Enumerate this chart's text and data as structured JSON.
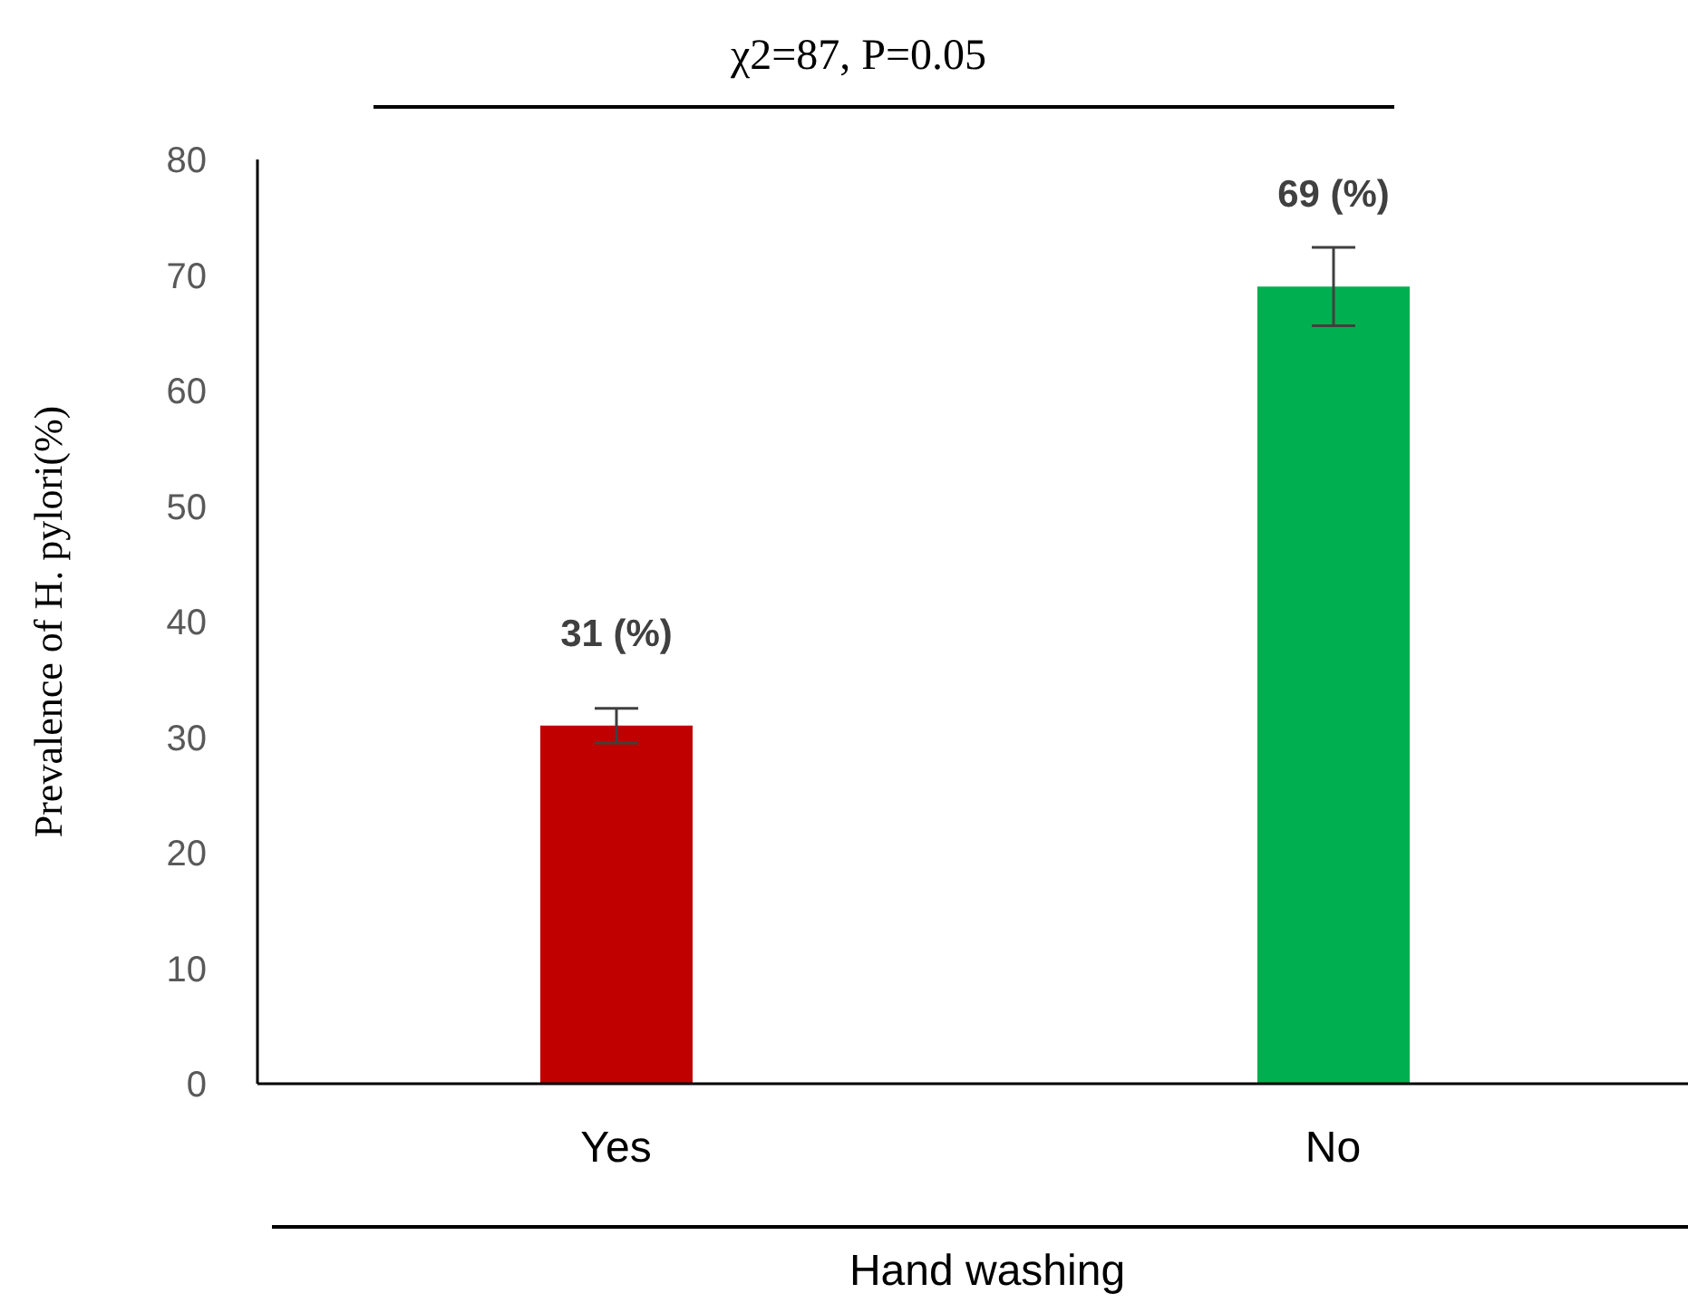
{
  "chart_data": {
    "type": "bar",
    "title": "χ2=87, P=0.05",
    "xlabel": "Hand washing",
    "ylabel": "Prevalence of H. pylori(%)",
    "categories": [
      "Yes",
      "No"
    ],
    "values": [
      31,
      69
    ],
    "colors": [
      "#c00000",
      "#00b050"
    ],
    "errors": [
      1.5,
      3.4
    ],
    "value_labels": [
      "31 (%)",
      "69 (%)"
    ],
    "ylim": [
      0,
      80
    ],
    "yticks": [
      0,
      10,
      20,
      30,
      40,
      50,
      60,
      70,
      80
    ],
    "grid": false,
    "legend": false
  }
}
